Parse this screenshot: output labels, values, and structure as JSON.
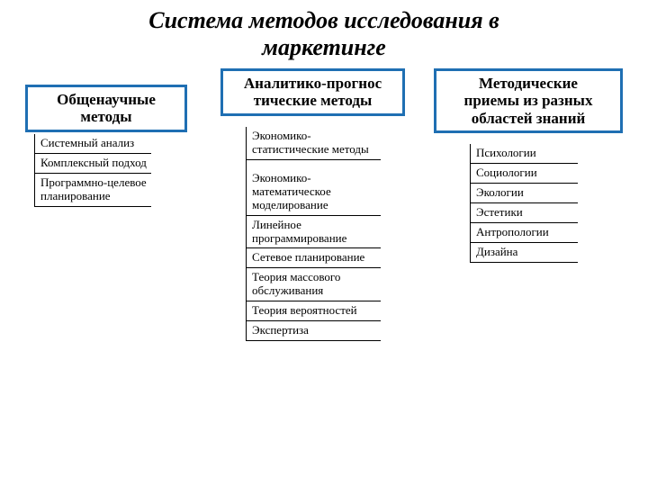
{
  "title_line1": "Система методов исследования в",
  "title_line2": "маркетинге",
  "columns": {
    "col1": {
      "header_l1": "Общенаучные",
      "header_l2": "методы",
      "items": [
        "Системный анализ",
        "Комплексный подход",
        "Программно-целевое планирование"
      ]
    },
    "col2": {
      "header_l1": "Аналитико-прогнос",
      "header_l2": "тические методы",
      "items": [
        "Экономико-статистические методы",
        "Экономико-математическое моделирование",
        "Линейное программирование",
        "Сетевое планирование",
        "Теория массового обслуживания",
        "Теория вероятностей",
        "Экспертиза"
      ]
    },
    "col3": {
      "header_l1": "Методические",
      "header_l2": "приемы из разных",
      "header_l3": "областей знаний",
      "items": [
        "Психологии",
        "Социологии",
        "Экологии",
        "Эстетики",
        "Антропологии",
        "Дизайна"
      ]
    }
  },
  "colors": {
    "header_border": "#1f6fb3",
    "line": "#000000",
    "background": "#ffffff",
    "text": "#000000"
  },
  "fonts": {
    "title_size_pt": 26,
    "header_size_pt": 17,
    "item_size_pt": 13,
    "family": "Times New Roman"
  }
}
